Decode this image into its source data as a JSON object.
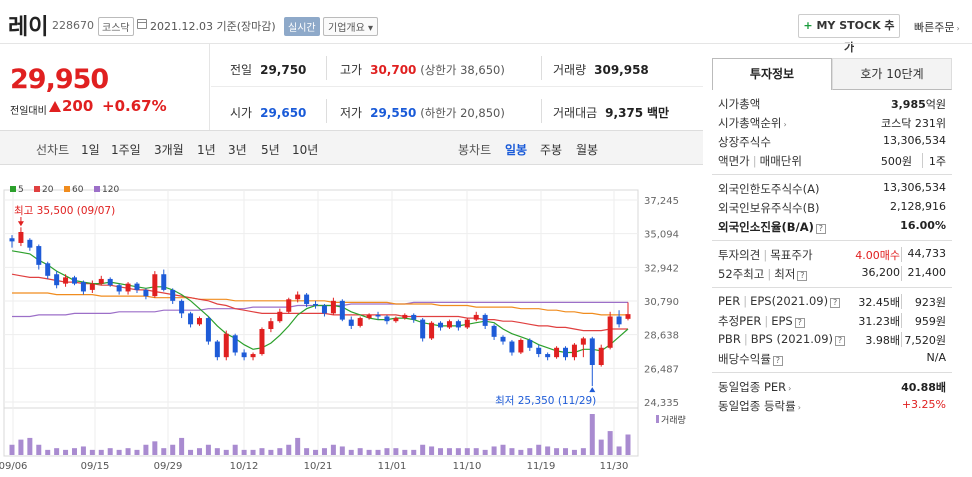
{
  "header": {
    "name": "레이",
    "code": "228670",
    "market": "코스닥",
    "date": "2021.12.03  기준(장마감)",
    "live_label": "실시간",
    "corp_label": "기업개요",
    "mystock_plus": "+",
    "mystock_label": "MY STOCK 추가",
    "quick_label": "빠른주문"
  },
  "price": {
    "current": "29,950",
    "change_label": "전일대비",
    "change": "200",
    "change_pct": "+0.67%"
  },
  "stats": {
    "prev_label": "전일",
    "prev": "29,750",
    "high_label": "고가",
    "high": "30,700",
    "upper_limit": "(상한가 38,650)",
    "volume_label": "거래량",
    "volume": "309,958",
    "open_label": "시가",
    "open": "29,650",
    "low_label": "저가",
    "low": "29,550",
    "lower_limit": "(하한가 20,850)",
    "amount_label": "거래대금",
    "amount": "9,375",
    "amount_unit": "백만"
  },
  "period": {
    "title": "선차트",
    "items": [
      "1일",
      "1주일",
      "3개월",
      "1년",
      "3년",
      "5년",
      "10년"
    ],
    "candle_title": "봉차트",
    "candle_items": [
      "일봉",
      "주봉",
      "월봉"
    ],
    "candle_active": "일봉"
  },
  "chart_data": {
    "type": "candlestick",
    "legend": [
      {
        "name": "5",
        "color": "#2ca02c"
      },
      {
        "name": "20",
        "color": "#e04040"
      },
      {
        "name": "60",
        "color": "#f08c1e"
      },
      {
        "name": "120",
        "color": "#9c6fc8"
      }
    ],
    "y_ticks": [
      "37,245",
      "35,094",
      "32,942",
      "30,790",
      "28,638",
      "26,487",
      "24,335"
    ],
    "ylim": [
      24335,
      37245
    ],
    "x_ticks": [
      "09/06",
      "09/15",
      "09/29",
      "10/12",
      "10/21",
      "11/01",
      "11/10",
      "11/19",
      "11/30"
    ],
    "high_annotation": "최고 35,500 (09/07)",
    "low_annotation": "최저 25,350 (11/29)",
    "volume_label": "거래량",
    "colors": {
      "up": "#e02020",
      "down": "#1e5bd7",
      "volume": "#a98bd0"
    },
    "candles": [
      [
        34800,
        34600,
        35000,
        34200
      ],
      [
        34500,
        35200,
        35500,
        34300
      ],
      [
        34700,
        34200,
        34800,
        34000
      ],
      [
        34300,
        33100,
        34400,
        32800
      ],
      [
        33200,
        32400,
        33300,
        32200
      ],
      [
        32500,
        31800,
        32700,
        31600
      ],
      [
        31900,
        32300,
        32500,
        31700
      ],
      [
        32300,
        31900,
        32400,
        31800
      ],
      [
        32000,
        31400,
        32100,
        31200
      ],
      [
        31500,
        31900,
        32100,
        31300
      ],
      [
        31900,
        32200,
        32400,
        31800
      ],
      [
        32200,
        31800,
        32300,
        31700
      ],
      [
        31800,
        31400,
        31900,
        31200
      ],
      [
        31400,
        31900,
        32000,
        31200
      ],
      [
        31900,
        31500,
        32000,
        31300
      ],
      [
        31500,
        31100,
        31600,
        30900
      ],
      [
        31100,
        32500,
        32700,
        31000
      ],
      [
        32500,
        31500,
        32800,
        31400
      ],
      [
        31500,
        30800,
        31600,
        30600
      ],
      [
        30800,
        30000,
        30900,
        29700
      ],
      [
        30000,
        29300,
        30100,
        29100
      ],
      [
        29300,
        29700,
        29800,
        29200
      ],
      [
        29700,
        28200,
        29800,
        28000
      ],
      [
        28200,
        27200,
        28300,
        27000
      ],
      [
        27200,
        28700,
        28900,
        27000
      ],
      [
        28600,
        27500,
        28700,
        27300
      ],
      [
        27500,
        27200,
        27700,
        27000
      ],
      [
        27200,
        27400,
        27500,
        27000
      ],
      [
        27400,
        29000,
        29100,
        27300
      ],
      [
        29000,
        29500,
        29700,
        28800
      ],
      [
        29500,
        30100,
        30300,
        29400
      ],
      [
        30100,
        30900,
        31000,
        30000
      ],
      [
        30900,
        31200,
        31400,
        30700
      ],
      [
        31200,
        30600,
        31300,
        30400
      ],
      [
        30600,
        30500,
        30800,
        30300
      ],
      [
        30500,
        30000,
        30600,
        29800
      ],
      [
        30000,
        30800,
        31000,
        29900
      ],
      [
        30800,
        29600,
        30900,
        29500
      ],
      [
        29600,
        29200,
        29800,
        29000
      ],
      [
        29200,
        29700,
        29800,
        29100
      ],
      [
        29700,
        29900,
        30000,
        29600
      ],
      [
        29900,
        29800,
        30100,
        29600
      ],
      [
        29800,
        29500,
        29900,
        29300
      ],
      [
        29500,
        29700,
        29800,
        29400
      ],
      [
        29700,
        29900,
        30000,
        29600
      ],
      [
        29900,
        29600,
        30000,
        29400
      ],
      [
        29600,
        28400,
        29700,
        28200
      ],
      [
        28400,
        29400,
        29500,
        28300
      ],
      [
        29400,
        29100,
        29500,
        28900
      ],
      [
        29100,
        29500,
        29600,
        29000
      ],
      [
        29500,
        29100,
        29600,
        28900
      ],
      [
        29100,
        29600,
        29700,
        29000
      ],
      [
        29600,
        29900,
        30100,
        29500
      ],
      [
        29900,
        29200,
        30000,
        29000
      ],
      [
        29200,
        28500,
        29300,
        28300
      ],
      [
        28500,
        28200,
        28600,
        28000
      ],
      [
        28200,
        27500,
        28300,
        27300
      ],
      [
        27500,
        28300,
        28400,
        27400
      ],
      [
        28300,
        27800,
        28400,
        27600
      ],
      [
        27800,
        27400,
        28000,
        27200
      ],
      [
        27400,
        27200,
        27500,
        27000
      ],
      [
        27200,
        27800,
        27900,
        27100
      ],
      [
        27800,
        27200,
        27900,
        27000
      ],
      [
        27200,
        28000,
        28100,
        27000
      ],
      [
        28000,
        28400,
        28500,
        27200
      ],
      [
        28400,
        26700,
        28500,
        25350
      ],
      [
        26700,
        27800,
        28000,
        26600
      ],
      [
        27800,
        29800,
        30100,
        27700
      ],
      [
        29800,
        29300,
        30200,
        29100
      ],
      [
        29650,
        29950,
        30700,
        29550
      ]
    ],
    "volume_values": [
      6,
      9,
      10,
      6,
      3,
      4,
      3,
      4,
      5,
      3,
      3,
      4,
      3,
      4,
      3,
      6,
      8,
      4,
      6,
      10,
      3,
      4,
      6,
      4,
      3,
      6,
      3,
      3,
      4,
      3,
      4,
      6,
      10,
      4,
      3,
      4,
      6,
      5,
      3,
      4,
      3,
      3,
      4,
      4,
      3,
      3,
      6,
      5,
      4,
      4,
      4,
      4,
      4,
      3,
      5,
      6,
      4,
      3,
      4,
      6,
      5,
      4,
      4,
      3,
      4,
      24,
      9,
      14,
      5,
      12
    ],
    "ma5": [
      34000,
      33900,
      33800,
      33400,
      33100,
      32700,
      32400,
      32100,
      32000,
      31900,
      31900,
      32000,
      31900,
      31800,
      31700,
      31600,
      31700,
      31700,
      31500,
      31200,
      30800,
      30300,
      29800,
      29200,
      28700,
      28400,
      28000,
      27700,
      27800,
      28100,
      28600,
      29200,
      29900,
      30300,
      30500,
      30500,
      30500,
      30400,
      30100,
      29900,
      29700,
      29600,
      29600,
      29700,
      29700,
      29600,
      29400,
      29300,
      29200,
      29200,
      29200,
      29300,
      29400,
      29500,
      29400,
      29000,
      28700,
      28500,
      28300,
      28000,
      27800,
      27600,
      27500,
      27500,
      27700,
      27700,
      27600,
      28000,
      28500,
      29000
    ],
    "ma20": [
      32500,
      32400,
      32300,
      32300,
      32200,
      32100,
      32000,
      32000,
      31900,
      31900,
      31800,
      31800,
      31700,
      31600,
      31500,
      31500,
      31400,
      31300,
      31200,
      31100,
      31000,
      30900,
      30800,
      30600,
      30500,
      30300,
      30200,
      30100,
      30000,
      30000,
      30000,
      30000,
      30000,
      30000,
      30000,
      30000,
      29900,
      29900,
      29900,
      29900,
      29900,
      29900,
      29900,
      29900,
      29800,
      29800,
      29800,
      29800,
      29800,
      29800,
      29800,
      29700,
      29700,
      29600,
      29600,
      29500,
      29500,
      29400,
      29300,
      29200,
      29200,
      29100,
      29100,
      29000,
      28900,
      28900,
      28900,
      29000,
      29000,
      29000
    ],
    "ma60": [
      31300,
      31300,
      31300,
      31300,
      31300,
      31200,
      31200,
      31200,
      31200,
      31200,
      31100,
      31100,
      31100,
      31100,
      31100,
      31100,
      31000,
      31000,
      31000,
      31000,
      31000,
      30900,
      30900,
      30900,
      30900,
      30800,
      30800,
      30800,
      30800,
      30800,
      30800,
      30800,
      30800,
      30800,
      30800,
      30800,
      30700,
      30700,
      30700,
      30700,
      30700,
      30700,
      30700,
      30600,
      30600,
      30600,
      30600,
      30600,
      30500,
      30500,
      30500,
      30500,
      30400,
      30400,
      30400,
      30400,
      30400,
      30300,
      30300,
      30300,
      30200,
      30200,
      30100,
      30100,
      30000,
      30000,
      29900,
      29900,
      29900,
      29900
    ],
    "ma120": [
      29800,
      29800,
      29800,
      29900,
      29900,
      29900,
      29900,
      30000,
      30000,
      30000,
      30000,
      30000,
      30100,
      30100,
      30100,
      30100,
      30100,
      30200,
      30200,
      30200,
      30200,
      30200,
      30300,
      30300,
      30300,
      30300,
      30300,
      30400,
      30400,
      30400,
      30400,
      30400,
      30500,
      30500,
      30500,
      30500,
      30500,
      30500,
      30600,
      30600,
      30600,
      30600,
      30600,
      30600,
      30600,
      30700,
      30700,
      30700,
      30700,
      30700,
      30700,
      30700,
      30700,
      30700,
      30700,
      30700,
      30700,
      30700,
      30700,
      30700,
      30700,
      30700,
      30700,
      30700,
      30700,
      30700,
      30700,
      30700,
      30700,
      30700
    ]
  },
  "panel": {
    "tab_active": "투자정보",
    "tab_other": "호가 10단계",
    "market_cap_label": "시가총액",
    "market_cap": "3,985",
    "market_cap_unit": "억원",
    "cap_rank_label": "시가총액순위",
    "cap_rank": "코스닥 231위",
    "shares_label": "상장주식수",
    "shares": "13,306,534",
    "par_label": "액면가",
    "unit_label": "매매단위",
    "par": "500원",
    "unit": "1주",
    "foreign_limit_label": "외국인한도주식수(A)",
    "foreign_limit": "13,306,534",
    "foreign_hold_label": "외국인보유주식수(B)",
    "foreign_hold": "2,128,916",
    "foreign_ratio_label": "외국인소진율(B/A)",
    "foreign_ratio": "16.00%",
    "opinion_label": "투자의견",
    "target_label": "목표주가",
    "opinion": "4.00매수",
    "target": "44,733",
    "w52_high_label": "52주최고",
    "w52_low_label": "최저",
    "w52_high": "36,200",
    "w52_low": "21,400",
    "per_label": "PER",
    "eps_label": "EPS(2021.09)",
    "per": "32.45배",
    "eps": "923원",
    "est_per_label": "추정PER",
    "est_eps_label": "EPS",
    "est_per": "31.23배",
    "est_eps": "959원",
    "pbr_label": "PBR",
    "bps_label": "BPS (2021.09)",
    "pbr": "3.98배",
    "bps": "7,520원",
    "div_label": "배당수익률",
    "div": "N/A",
    "sector_per_label": "동일업종 PER",
    "sector_per": "40.88배",
    "sector_chg_label": "동일업종 등락률",
    "sector_chg": "+3.25%"
  }
}
